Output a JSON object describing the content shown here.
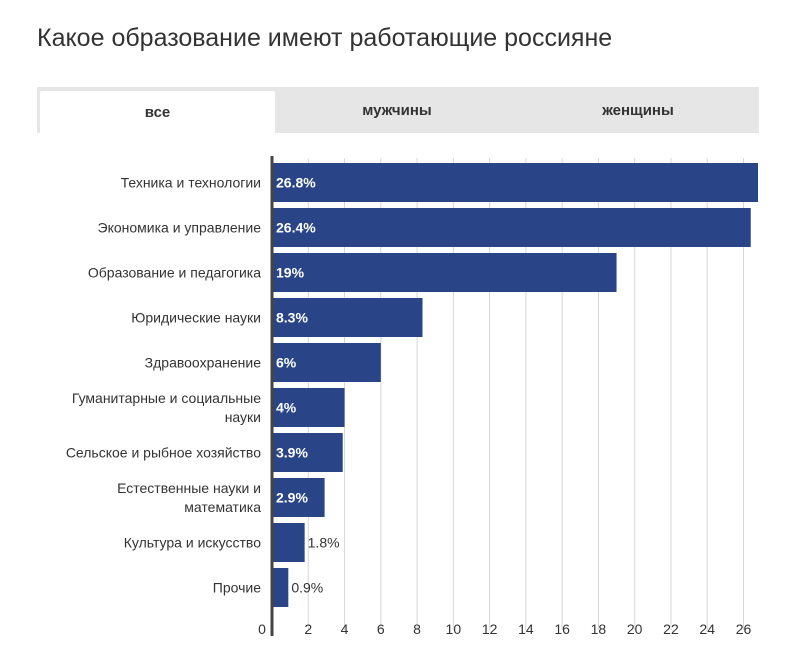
{
  "page": {
    "title": "Какое образование имеют работающие россияне"
  },
  "tabs": [
    {
      "label": "все",
      "active": true
    },
    {
      "label": "мужчины",
      "active": false
    },
    {
      "label": "женщины",
      "active": false
    }
  ],
  "colors": {
    "bar": "#2a4587",
    "grid": "#d6d6d6",
    "axis": "#444444",
    "tab_bg": "#e6e6e6"
  },
  "chart_data": {
    "type": "bar",
    "orientation": "horizontal",
    "title": "Какое образование имеют работающие россияне",
    "categories": [
      "Техника и технологии",
      "Экономика и управление",
      "Образование и педагогика",
      "Юридические науки",
      "Здравоохранение",
      "Гуманитарные и социальные науки",
      "Сельское и рыбное хозяйство",
      "Естественные науки и математика",
      "Культура и искусство",
      "Прочие"
    ],
    "category_lines": [
      [
        "Техника и технологии"
      ],
      [
        "Экономика и управление"
      ],
      [
        "Образование и педагогика"
      ],
      [
        "Юридические науки"
      ],
      [
        "Здравоохранение"
      ],
      [
        "Гуманитарные и социальные",
        "науки"
      ],
      [
        "Сельское и рыбное хозяйство"
      ],
      [
        "Естественные науки и",
        "математика"
      ],
      [
        "Культура и искусство"
      ],
      [
        "Прочие"
      ]
    ],
    "values": [
      26.8,
      26.4,
      19,
      8.3,
      6,
      4,
      3.9,
      2.9,
      1.8,
      0.9
    ],
    "data_labels": [
      "26.8%",
      "26.4%",
      "19%",
      "8.3%",
      "6%",
      "4%",
      "3.9%",
      "2.9%",
      "1.8%",
      "0.9%"
    ],
    "xticks": [
      0,
      2,
      4,
      6,
      8,
      10,
      12,
      14,
      16,
      18,
      20,
      22,
      24,
      26
    ],
    "xlim": [
      0,
      26.8
    ],
    "xlabel": "",
    "ylabel": "",
    "grid": true
  }
}
